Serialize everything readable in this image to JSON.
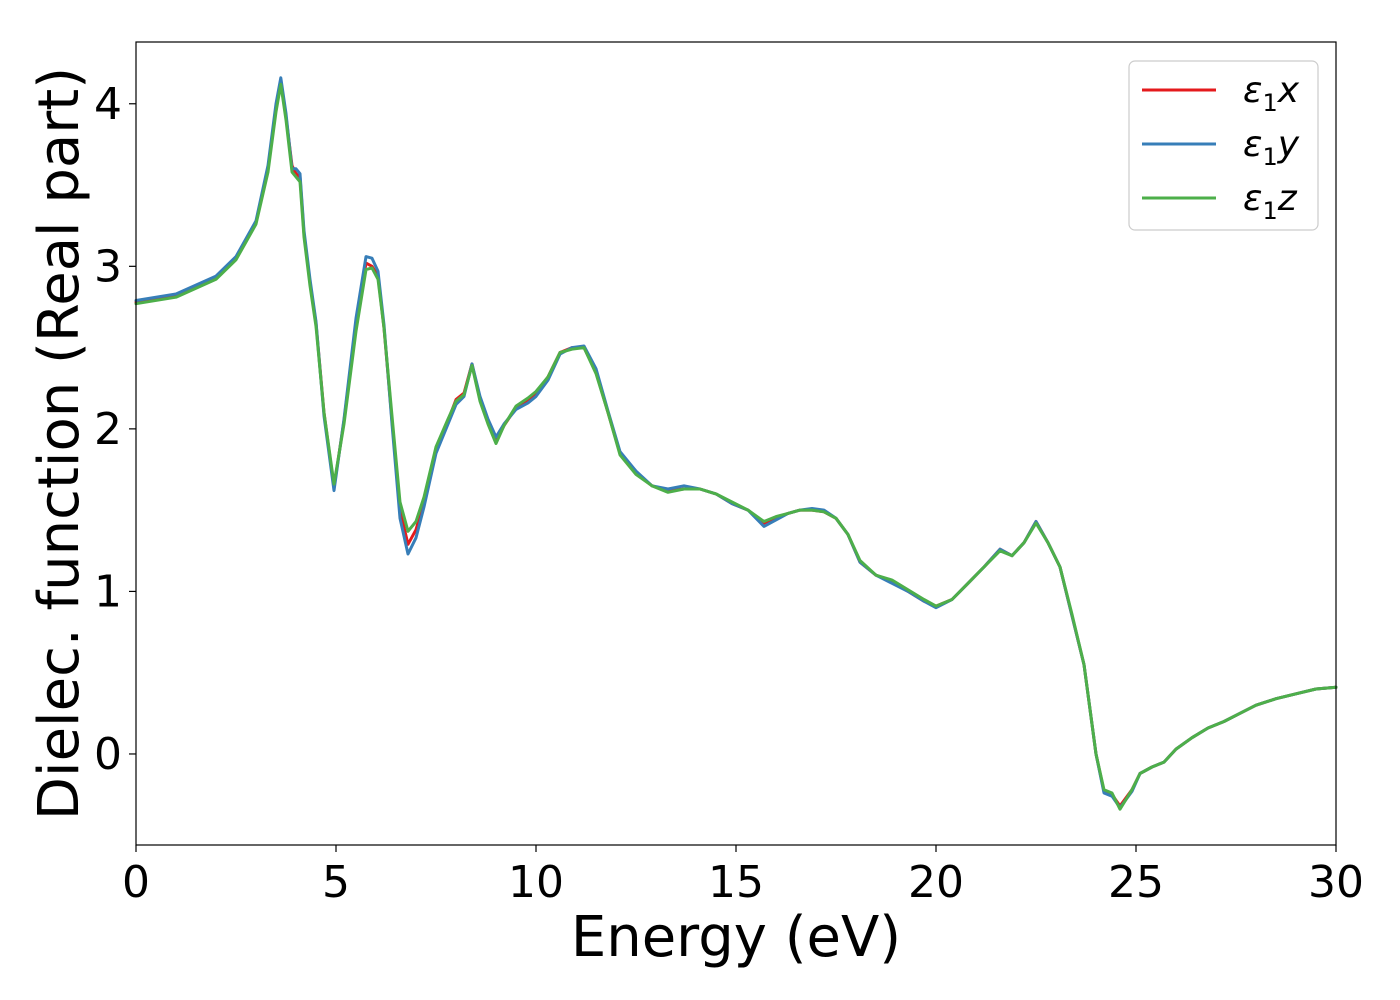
{
  "chart_data": {
    "type": "line",
    "title": "",
    "xlabel": "Energy (eV)",
    "ylabel": "Dielec. function (Real part)",
    "xlim": [
      0,
      30
    ],
    "ylim": [
      -0.56,
      4.38
    ],
    "xticks": [
      0,
      5,
      10,
      15,
      20,
      25,
      30
    ],
    "yticks": [
      0,
      1,
      2,
      3,
      4
    ],
    "grid": false,
    "legend_position": "top-right",
    "series": [
      {
        "name": "ε1x",
        "legend_base": "ε",
        "legend_sub": "1",
        "legend_axis": "x",
        "color": "#e41a1c",
        "x": [
          0,
          1,
          2,
          2.5,
          3,
          3.3,
          3.5,
          3.62,
          3.75,
          3.9,
          4.0,
          4.1,
          4.2,
          4.35,
          4.5,
          4.7,
          4.95,
          5.2,
          5.5,
          5.75,
          5.9,
          6.05,
          6.2,
          6.4,
          6.6,
          6.8,
          7.0,
          7.2,
          7.5,
          7.8,
          8.0,
          8.2,
          8.4,
          8.6,
          8.8,
          9.0,
          9.2,
          9.5,
          9.8,
          10.0,
          10.3,
          10.6,
          10.9,
          11.2,
          11.5,
          11.8,
          12.1,
          12.5,
          12.9,
          13.3,
          13.7,
          14.1,
          14.5,
          14.9,
          15.3,
          15.7,
          16.0,
          16.3,
          16.6,
          16.9,
          17.2,
          17.5,
          17.8,
          18.1,
          18.5,
          18.9,
          19.3,
          19.7,
          20.0,
          20.4,
          20.8,
          21.2,
          21.6,
          21.9,
          22.2,
          22.5,
          22.8,
          23.1,
          23.4,
          23.7,
          24.0,
          24.2,
          24.4,
          24.6,
          24.9,
          25.1,
          25.4,
          25.7,
          26.0,
          26.4,
          26.8,
          27.2,
          27.6,
          28.0,
          28.5,
          29.0,
          29.5,
          30.0
        ],
        "y": [
          2.78,
          2.82,
          2.93,
          3.05,
          3.27,
          3.6,
          3.98,
          4.14,
          3.92,
          3.62,
          3.57,
          3.55,
          3.2,
          2.9,
          2.65,
          2.1,
          1.64,
          2.05,
          2.65,
          3.02,
          3.0,
          2.94,
          2.62,
          2.05,
          1.5,
          1.29,
          1.38,
          1.55,
          1.87,
          2.05,
          2.18,
          2.22,
          2.4,
          2.18,
          2.05,
          1.93,
          2.02,
          2.13,
          2.18,
          2.22,
          2.32,
          2.47,
          2.5,
          2.5,
          2.35,
          2.1,
          1.85,
          1.73,
          1.65,
          1.62,
          1.63,
          1.63,
          1.6,
          1.54,
          1.5,
          1.42,
          1.45,
          1.48,
          1.5,
          1.5,
          1.49,
          1.45,
          1.35,
          1.18,
          1.1,
          1.06,
          1.0,
          0.94,
          0.91,
          0.95,
          1.05,
          1.15,
          1.26,
          1.22,
          1.3,
          1.43,
          1.3,
          1.15,
          0.85,
          0.55,
          0.0,
          -0.23,
          -0.25,
          -0.32,
          -0.22,
          -0.12,
          -0.08,
          -0.05,
          0.03,
          0.1,
          0.16,
          0.2,
          0.25,
          0.3,
          0.34,
          0.37,
          0.4,
          0.41
        ]
      },
      {
        "name": "ε1y",
        "legend_base": "ε",
        "legend_sub": "1",
        "legend_axis": "y",
        "color": "#377eb8",
        "x": [
          0,
          1,
          2,
          2.5,
          3,
          3.3,
          3.5,
          3.62,
          3.75,
          3.9,
          4.0,
          4.1,
          4.2,
          4.35,
          4.5,
          4.7,
          4.95,
          5.2,
          5.5,
          5.75,
          5.9,
          6.05,
          6.2,
          6.4,
          6.6,
          6.8,
          7.0,
          7.2,
          7.5,
          7.8,
          8.0,
          8.2,
          8.4,
          8.6,
          8.8,
          9.0,
          9.2,
          9.5,
          9.8,
          10.0,
          10.3,
          10.6,
          10.9,
          11.2,
          11.5,
          11.8,
          12.1,
          12.5,
          12.9,
          13.3,
          13.7,
          14.1,
          14.5,
          14.9,
          15.3,
          15.7,
          16.0,
          16.3,
          16.6,
          16.9,
          17.2,
          17.5,
          17.8,
          18.1,
          18.5,
          18.9,
          19.3,
          19.7,
          20.0,
          20.4,
          20.8,
          21.2,
          21.6,
          21.9,
          22.2,
          22.5,
          22.8,
          23.1,
          23.4,
          23.7,
          24.0,
          24.2,
          24.4,
          24.6,
          24.9,
          25.1,
          25.4,
          25.7,
          26.0,
          26.4,
          26.8,
          27.2,
          27.6,
          28.0,
          28.5,
          29.0,
          29.5,
          30.0
        ],
        "y": [
          2.79,
          2.83,
          2.94,
          3.06,
          3.28,
          3.62,
          4.0,
          4.16,
          3.94,
          3.6,
          3.6,
          3.57,
          3.22,
          2.92,
          2.66,
          2.08,
          1.62,
          2.06,
          2.68,
          3.06,
          3.05,
          2.97,
          2.64,
          2.03,
          1.45,
          1.23,
          1.33,
          1.52,
          1.85,
          2.03,
          2.15,
          2.2,
          2.4,
          2.2,
          2.06,
          1.95,
          2.03,
          2.12,
          2.16,
          2.2,
          2.3,
          2.46,
          2.5,
          2.51,
          2.37,
          2.11,
          1.86,
          1.74,
          1.65,
          1.63,
          1.65,
          1.63,
          1.6,
          1.54,
          1.5,
          1.4,
          1.44,
          1.48,
          1.5,
          1.51,
          1.5,
          1.45,
          1.35,
          1.18,
          1.1,
          1.05,
          1.0,
          0.94,
          0.9,
          0.95,
          1.05,
          1.15,
          1.26,
          1.22,
          1.3,
          1.43,
          1.3,
          1.15,
          0.85,
          0.55,
          0.0,
          -0.24,
          -0.26,
          -0.33,
          -0.23,
          -0.12,
          -0.08,
          -0.05,
          0.03,
          0.1,
          0.16,
          0.2,
          0.25,
          0.3,
          0.34,
          0.37,
          0.4,
          0.41
        ]
      },
      {
        "name": "ε1z",
        "legend_base": "ε",
        "legend_sub": "1",
        "legend_axis": "z",
        "color": "#4daf4a",
        "x": [
          0,
          1,
          2,
          2.5,
          3,
          3.3,
          3.5,
          3.62,
          3.75,
          3.9,
          4.0,
          4.1,
          4.2,
          4.35,
          4.5,
          4.7,
          4.95,
          5.2,
          5.5,
          5.75,
          5.9,
          6.05,
          6.2,
          6.4,
          6.6,
          6.8,
          7.0,
          7.2,
          7.5,
          7.8,
          8.0,
          8.2,
          8.4,
          8.6,
          8.8,
          9.0,
          9.2,
          9.5,
          9.8,
          10.0,
          10.3,
          10.6,
          10.9,
          11.2,
          11.5,
          11.8,
          12.1,
          12.5,
          12.9,
          13.3,
          13.7,
          14.1,
          14.5,
          14.9,
          15.3,
          15.7,
          16.0,
          16.3,
          16.6,
          16.9,
          17.2,
          17.5,
          17.8,
          18.1,
          18.5,
          18.9,
          19.3,
          19.7,
          20.0,
          20.4,
          20.8,
          21.2,
          21.6,
          21.9,
          22.2,
          22.5,
          22.8,
          23.1,
          23.4,
          23.7,
          24.0,
          24.2,
          24.4,
          24.6,
          24.9,
          25.1,
          25.4,
          25.7,
          26.0,
          26.4,
          26.8,
          27.2,
          27.6,
          28.0,
          28.5,
          29.0,
          29.5,
          30.0
        ],
        "y": [
          2.77,
          2.81,
          2.92,
          3.04,
          3.26,
          3.58,
          3.95,
          4.12,
          3.9,
          3.58,
          3.55,
          3.52,
          3.18,
          2.88,
          2.63,
          2.1,
          1.66,
          2.03,
          2.6,
          2.98,
          2.99,
          2.92,
          2.62,
          2.08,
          1.55,
          1.37,
          1.43,
          1.58,
          1.89,
          2.06,
          2.17,
          2.21,
          2.39,
          2.17,
          2.03,
          1.91,
          2.02,
          2.14,
          2.19,
          2.23,
          2.32,
          2.47,
          2.49,
          2.5,
          2.34,
          2.1,
          1.84,
          1.72,
          1.65,
          1.61,
          1.63,
          1.63,
          1.6,
          1.55,
          1.5,
          1.43,
          1.46,
          1.48,
          1.5,
          1.5,
          1.49,
          1.45,
          1.35,
          1.19,
          1.1,
          1.07,
          1.01,
          0.95,
          0.91,
          0.95,
          1.05,
          1.15,
          1.25,
          1.22,
          1.3,
          1.42,
          1.3,
          1.15,
          0.86,
          0.55,
          0.0,
          -0.22,
          -0.24,
          -0.34,
          -0.22,
          -0.12,
          -0.08,
          -0.05,
          0.03,
          0.1,
          0.16,
          0.2,
          0.25,
          0.3,
          0.34,
          0.37,
          0.4,
          0.41
        ]
      }
    ]
  }
}
